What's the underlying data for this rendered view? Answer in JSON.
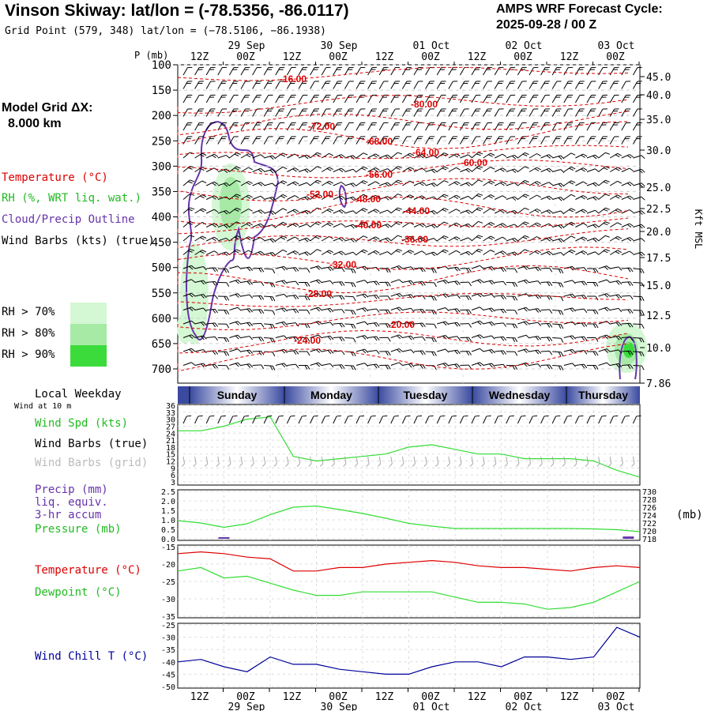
{
  "header": {
    "title": "Vinson Skiway:  lat/lon = (-78.5356, -86.0117)",
    "subtitle": "Grid Point (579, 348) lat/lon = (−78.5106, −86.1938)",
    "cycle_line1": "AMPS WRF Forecast Cycle:",
    "cycle_line2": "2025-09-28 / 00  Z"
  },
  "sidebar": {
    "model_grid_label": "Model Grid ΔX:",
    "model_grid_value": "8.000 km",
    "legend_temperature": "Temperature (°C)",
    "legend_rh": "RH (%, WRT liq. wat.)",
    "legend_cloud": "Cloud/Precip Outline",
    "legend_wind": "Wind Barbs (kts) (true)",
    "rh70": "RH > 70%",
    "rh80": "RH > 80%",
    "rh90": "RH > 90%",
    "local_weekday": "Local Weekday",
    "wind_at": "Wind at 10 m",
    "wind_spd": "Wind Spd (kts)",
    "wind_barbs_true": "Wind Barbs (true)",
    "wind_barbs_grid": "Wind Barbs (grid)",
    "precip": "Precip (mm)",
    "liq_equiv": "liq. equiv.",
    "accum": "3-hr accum",
    "pressure": "Pressure (mb)",
    "temperature2": "Temperature (°C)",
    "dewpoint": "Dewpoint (°C)",
    "windchill": "Wind Chill T (°C)",
    "mb_unit": "(mb)"
  },
  "colors": {
    "temp": "#dd0000",
    "rh": "#33dd33",
    "cloud": "#6633aa",
    "windchill": "#000099",
    "rh70": "#d4f7d4",
    "rh80": "#a6eaa6",
    "rh90": "#3adb3a"
  },
  "chart_data": [
    {
      "type": "heatmap",
      "title": "Vertical profile",
      "ylabel": "P (mb)",
      "y2label": "Kft MSL",
      "pressure_ticks": [
        "100",
        "150",
        "200",
        "250",
        "300",
        "350",
        "400",
        "450",
        "500",
        "550",
        "600",
        "650",
        "700"
      ],
      "height_ticks": [
        "45.0",
        "40.0",
        "35.0",
        "30.0",
        "25.0",
        "22.5",
        "20.0",
        "17.5",
        "15.0",
        "12.5",
        "10.0",
        "7.86"
      ],
      "time_ticks": [
        "12Z",
        "00Z",
        "12Z",
        "00Z",
        "12Z",
        "00Z",
        "12Z",
        "00Z",
        "12Z",
        "00Z"
      ],
      "date_ticks": [
        "29 Sep",
        "30 Sep",
        "01 Oct",
        "02 Oct",
        "03 Oct"
      ],
      "temperature_contour_labels": [
        "-16.00",
        "-80.00",
        "-72.00",
        "-68.00",
        "-64.00",
        "-60.00",
        "-56.00",
        "-52.00",
        "-48.00",
        "-44.00",
        "-40.00",
        "-36.00",
        "-32.00",
        "-28.00",
        "-24.00",
        "-20.00"
      ],
      "p_mb_label": "P (mb)"
    },
    {
      "type": "line",
      "title": "Wind Spd (kts)",
      "x_hours": [
        0,
        6,
        12,
        18,
        24,
        30,
        36,
        42,
        48,
        54,
        60,
        66,
        72,
        78,
        84,
        90,
        96,
        102,
        108,
        114,
        120
      ],
      "series": [
        {
          "name": "Wind Spd (kts)",
          "values": [
            25,
            25,
            27,
            30,
            31,
            14,
            12,
            13,
            14,
            15,
            18,
            19,
            17,
            15,
            15,
            13,
            13,
            13,
            12,
            8,
            5
          ]
        }
      ],
      "yticks": [
        "36",
        "33",
        "30",
        "27",
        "24",
        "21",
        "18",
        "15",
        "12",
        "9",
        "6",
        "3"
      ],
      "ylim": [
        3,
        36
      ]
    },
    {
      "type": "line",
      "title": "Precip / Pressure",
      "x_hours": [
        0,
        6,
        12,
        18,
        24,
        30,
        36,
        42,
        48,
        54,
        60,
        66,
        72,
        78,
        84,
        90,
        96,
        102,
        108,
        114,
        120
      ],
      "series": [
        {
          "name": "Pressure (mb)",
          "values": [
            722.6,
            722.0,
            720.9,
            721.8,
            724.1,
            726.0,
            726.3,
            725.4,
            724.4,
            723.2,
            721.9,
            721.2,
            720.6,
            720.6,
            720.6,
            720.6,
            720.6,
            720.6,
            720.5,
            720.3,
            719.8
          ]
        }
      ],
      "precip_bars": [
        {
          "x": 12,
          "value": 0.08
        },
        {
          "x": 117,
          "value": 0.12
        }
      ],
      "yticks_left": [
        "2.5",
        "2.0",
        "1.5",
        "1.0",
        "0.5",
        "0.0"
      ],
      "yticks_right": [
        "730",
        "728",
        "726",
        "724",
        "722",
        "720",
        "718"
      ],
      "ylim_left": [
        0,
        2.5
      ],
      "ylim_right": [
        718,
        730
      ]
    },
    {
      "type": "line",
      "title": "Temperature / Dewpoint",
      "x_hours": [
        0,
        6,
        12,
        18,
        24,
        30,
        36,
        42,
        48,
        54,
        60,
        66,
        72,
        78,
        84,
        90,
        96,
        102,
        108,
        114,
        120
      ],
      "series": [
        {
          "name": "Temperature (°C)",
          "values": [
            -17,
            -16.5,
            -17,
            -18,
            -18.5,
            -22,
            -22,
            -21,
            -21,
            -20,
            -19.5,
            -19,
            -19.5,
            -20.5,
            -21,
            -21,
            -21.5,
            -22,
            -21,
            -20.5,
            -21
          ]
        },
        {
          "name": "Dewpoint (°C)",
          "values": [
            -22,
            -21,
            -24,
            -23.5,
            -25.5,
            -27.5,
            -29,
            -29,
            -28,
            -28,
            -28,
            -28,
            -29.5,
            -31,
            -31,
            -31.5,
            -33,
            -32.5,
            -31,
            -28,
            -25
          ]
        }
      ],
      "yticks": [
        "-15",
        "-20",
        "-25",
        "-30",
        "-35"
      ],
      "ylim": [
        -35,
        -15
      ]
    },
    {
      "type": "line",
      "title": "Wind Chill T (°C)",
      "x_hours": [
        0,
        6,
        12,
        18,
        24,
        30,
        36,
        42,
        48,
        54,
        60,
        66,
        72,
        78,
        84,
        90,
        96,
        102,
        108,
        114,
        120
      ],
      "series": [
        {
          "name": "Wind Chill T (°C)",
          "values": [
            -40,
            -39,
            -42,
            -44,
            -38,
            -41,
            -41,
            -43,
            -44,
            -45,
            -45,
            -42,
            -40,
            -40,
            -42,
            -38,
            -38,
            -39,
            -38,
            -26,
            -30
          ]
        }
      ],
      "yticks": [
        "-25",
        "-30",
        "-35",
        "-40",
        "-45",
        "-50"
      ],
      "ylim": [
        -50,
        -25
      ]
    }
  ],
  "weekday_strip": {
    "days": [
      "Sunday",
      "Monday",
      "Tuesday",
      "Wednesday",
      "Thursday"
    ]
  },
  "bottom_axis": {
    "time_ticks": [
      "12Z",
      "00Z",
      "12Z",
      "00Z",
      "12Z",
      "00Z",
      "12Z",
      "00Z",
      "12Z",
      "00Z"
    ],
    "date_ticks": [
      "29 Sep",
      "30 Sep",
      "01 Oct",
      "02 Oct",
      "03 Oct"
    ]
  }
}
